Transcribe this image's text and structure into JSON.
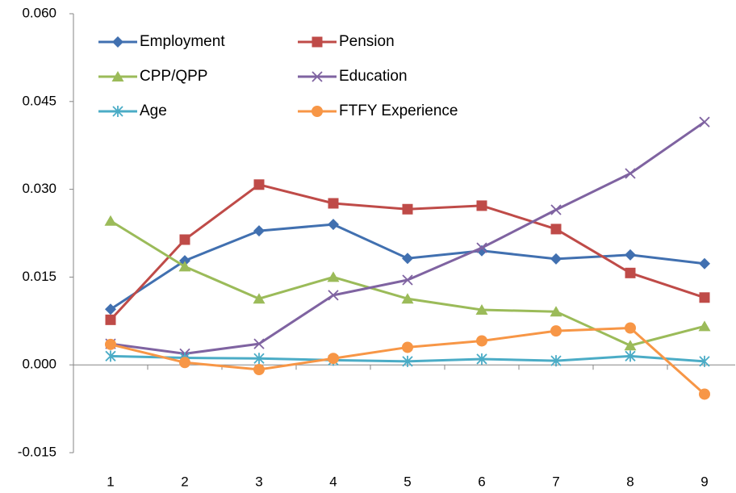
{
  "chart_data": {
    "type": "line",
    "categories": [
      "1",
      "2",
      "3",
      "4",
      "5",
      "6",
      "7",
      "8",
      "9"
    ],
    "series": [
      {
        "name": "Employment",
        "color": "#4170b0",
        "marker": "diamond",
        "values": [
          0.0095,
          0.0178,
          0.0229,
          0.024,
          0.0182,
          0.0195,
          0.0181,
          0.0188,
          0.0173
        ]
      },
      {
        "name": "Pension",
        "color": "#bf4b48",
        "marker": "square",
        "values": [
          0.0077,
          0.0214,
          0.0308,
          0.0276,
          0.0266,
          0.0272,
          0.0232,
          0.0157,
          0.0115
        ]
      },
      {
        "name": "CPP/QPP",
        "color": "#9bbb59",
        "marker": "triangle",
        "values": [
          0.0246,
          0.0168,
          0.0113,
          0.015,
          0.0113,
          0.0094,
          0.0091,
          0.0033,
          0.0066
        ]
      },
      {
        "name": "Education",
        "color": "#7f63a1",
        "marker": "x",
        "values": [
          0.0036,
          0.0019,
          0.0036,
          0.0119,
          0.0145,
          0.02,
          0.0265,
          0.0327,
          0.0415
        ]
      },
      {
        "name": "Age",
        "color": "#4bacc6",
        "marker": "asterisk",
        "values": [
          0.0015,
          0.0012,
          0.0011,
          0.0008,
          0.0006,
          0.001,
          0.0007,
          0.0015,
          0.0006
        ]
      },
      {
        "name": "FTFY Experience",
        "color": "#f79646",
        "marker": "circle",
        "values": [
          0.0035,
          0.0004,
          -0.0008,
          0.0011,
          0.003,
          0.0041,
          0.0058,
          0.0063,
          -0.005
        ]
      }
    ],
    "ylim": [
      -0.015,
      0.06
    ],
    "yticks": [
      {
        "value": -0.015,
        "label": "-0.015"
      },
      {
        "value": 0,
        "label": "0.000"
      },
      {
        "value": 0.015,
        "label": "0.015"
      },
      {
        "value": 0.03,
        "label": "0.030"
      },
      {
        "value": 0.045,
        "label": "0.045"
      },
      {
        "value": 0.06,
        "label": "0.060"
      }
    ],
    "grid": false,
    "legend": "upper left"
  }
}
